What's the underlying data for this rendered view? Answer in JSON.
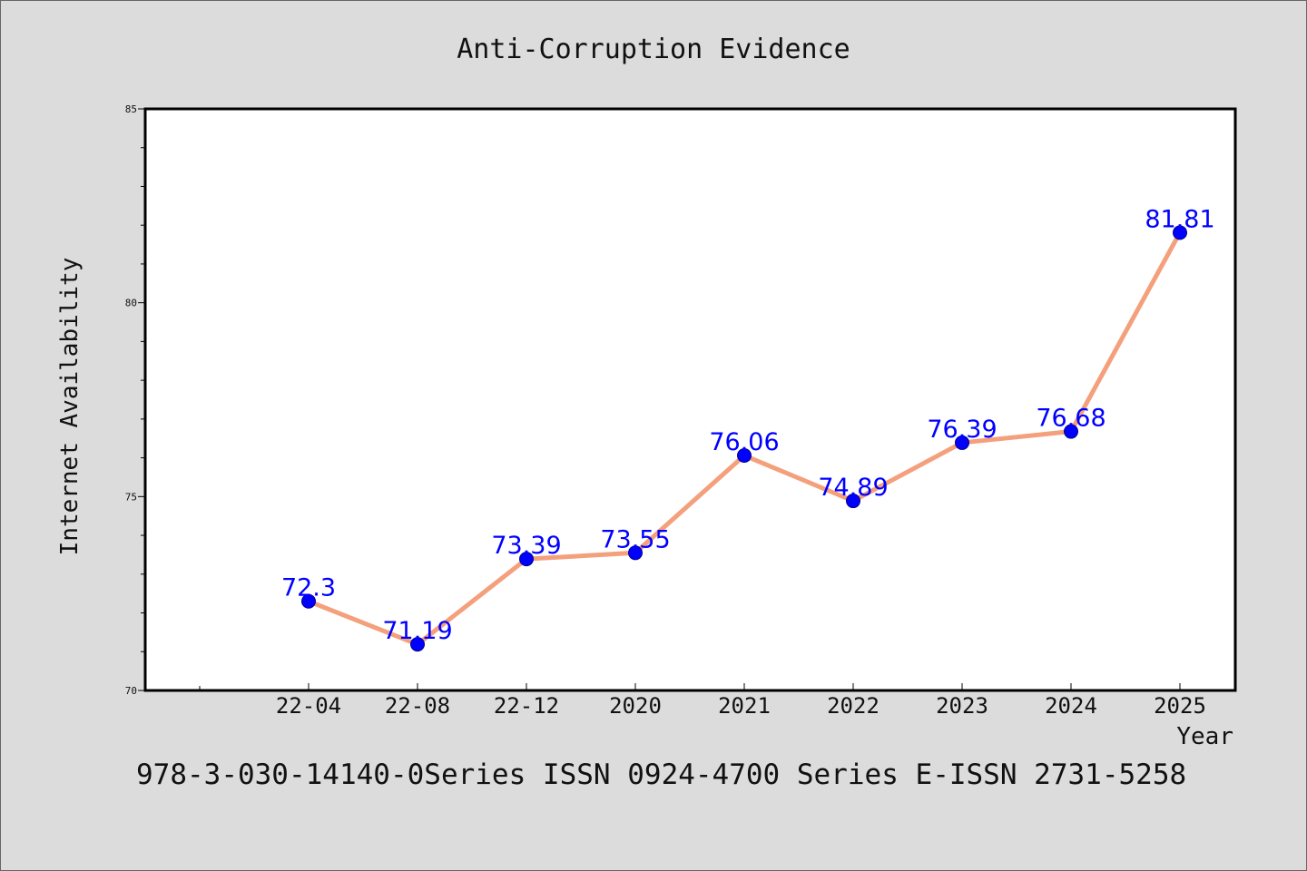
{
  "chart_data": {
    "type": "line",
    "title": "Anti-Corruption Evidence",
    "xlabel": "Year",
    "ylabel": "Internet Availability",
    "categories": [
      "22-04",
      "22-08",
      "22-12",
      "2020",
      "2021",
      "2022",
      "2023",
      "2024",
      "2025"
    ],
    "values": [
      72.3,
      71.19,
      73.39,
      73.55,
      76.06,
      74.89,
      76.39,
      76.68,
      81.81
    ],
    "data_labels": [
      "72.3",
      "71.19",
      "73.39",
      "73.55",
      "76.06",
      "74.89",
      "76.39",
      "76.68",
      "81.81"
    ],
    "ylim": [
      70,
      85
    ],
    "yticks": [
      "70",
      "75",
      "80",
      "85"
    ],
    "grid": false,
    "legend": "none"
  },
  "footer": {
    "text": "978-3-030-14140-0Series ISSN 0924-4700 Series E-ISSN 2731-5258"
  },
  "colors": {
    "line": "#f4a07c",
    "marker": "#0000ff",
    "data_label": "#0000ff",
    "background": "#dcdcdc",
    "plot_background": "#ffffff"
  }
}
